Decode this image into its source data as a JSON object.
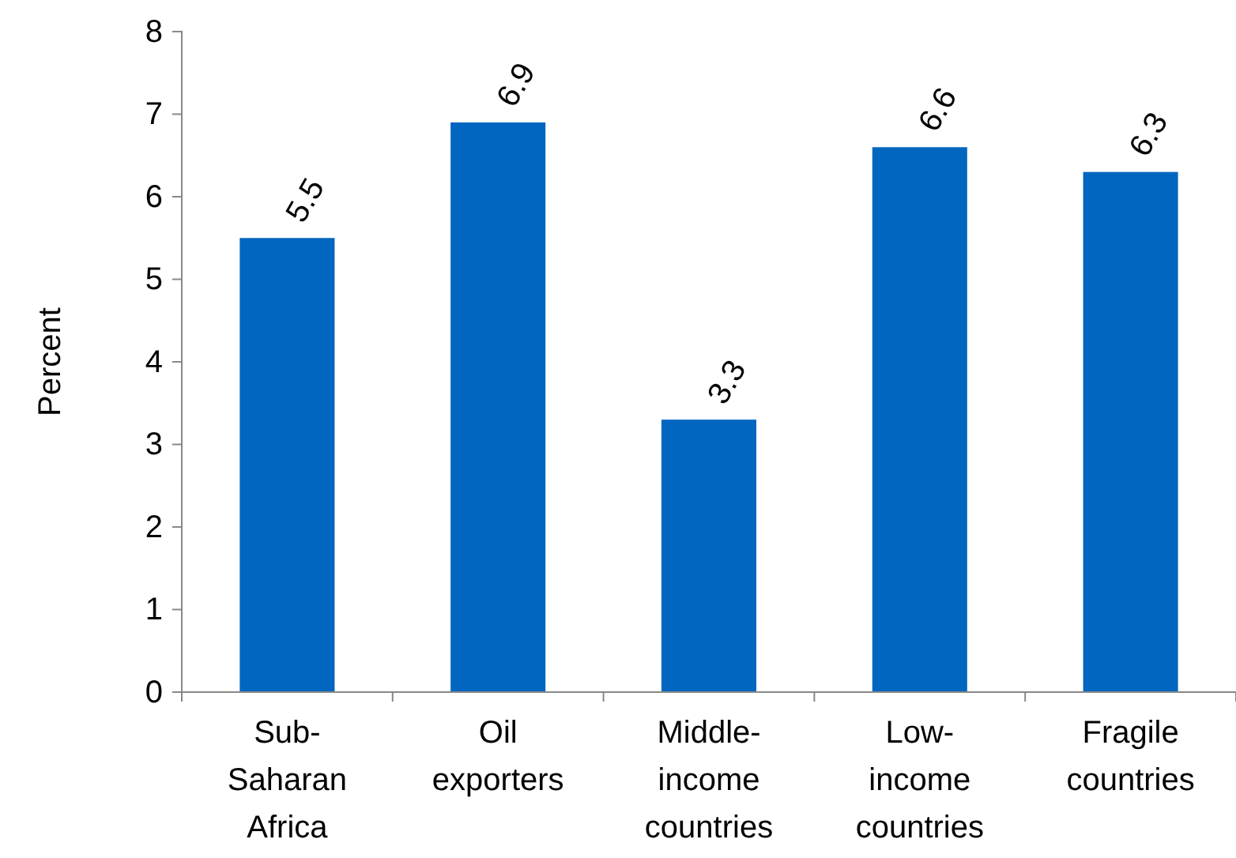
{
  "chart_data": {
    "type": "bar",
    "ylabel": "Percent",
    "categories": [
      "Sub-Saharan Africa",
      "Oil exporters",
      "Middle-income countries",
      "Low-income countries",
      "Fragile countries"
    ],
    "values": [
      5.5,
      6.9,
      3.3,
      6.6,
      6.3
    ],
    "color": "#0066c0",
    "ylim": [
      0,
      8
    ],
    "yticks": [
      0,
      1,
      2,
      3,
      4,
      5,
      6,
      7,
      8
    ],
    "data_labels": true
  }
}
